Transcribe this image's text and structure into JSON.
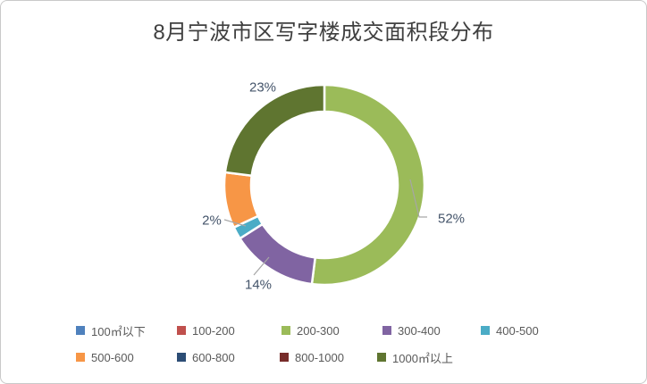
{
  "chart_data": {
    "type": "pie",
    "subtype": "donut",
    "title": "8月宁波市区写字楼成交面积段分布",
    "start_angle_deg": 0,
    "direction": "clockwise",
    "hole_ratio": 0.73,
    "legend_position": "bottom",
    "series": [
      {
        "name": "100㎡以下",
        "value": 0,
        "color": "#4F81BD",
        "label": null
      },
      {
        "name": "100-200",
        "value": 0,
        "color": "#C0504D",
        "label": null
      },
      {
        "name": "200-300",
        "value": 52,
        "color": "#9BBB59",
        "label": "52%"
      },
      {
        "name": "300-400",
        "value": 14,
        "color": "#8064A2",
        "label": "14%"
      },
      {
        "name": "400-500",
        "value": 2,
        "color": "#4BACC6",
        "label": "2%"
      },
      {
        "name": "500-600",
        "value": 9,
        "color": "#F79646",
        "label": null
      },
      {
        "name": "600-800",
        "value": 0,
        "color": "#2C4D75",
        "label": null
      },
      {
        "name": "800-1000",
        "value": 0,
        "color": "#772C2A",
        "label": null
      },
      {
        "name": "1000㎡以上",
        "value": 23,
        "color": "#5F7530",
        "label": "23%"
      }
    ],
    "colors": {
      "title_text": "#404040",
      "label_text": "#44546A",
      "legend_text": "#595959",
      "leader_line": "#A6A6A6",
      "slice_border": "#FFFFFF",
      "background": "#FFFFFF",
      "frame_border": "#C9C9C9"
    }
  }
}
